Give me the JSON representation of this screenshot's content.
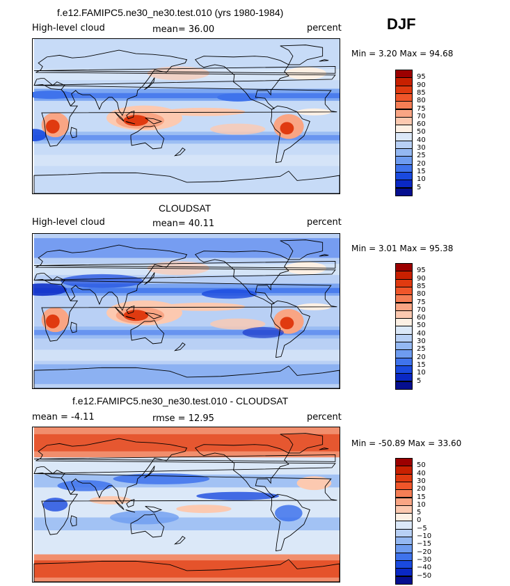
{
  "season": "DJF",
  "panels": [
    {
      "title": "f.e12.FAMIPC5.ne30_ne30.test.010 (yrs 1980-1984)",
      "left_label": "High-level cloud",
      "center_label": "mean=  36.00",
      "right_label": "percent",
      "minmax": "Min =   3.20 Max =  94.68",
      "levels": [
        "95",
        "90",
        "85",
        "80",
        "75",
        "70",
        "60",
        "50",
        "40",
        "30",
        "25",
        "20",
        "15",
        "10",
        "5"
      ],
      "colors": [
        "#9c0000",
        "#c82000",
        "#e03a10",
        "#f0562a",
        "#f57e55",
        "#f9a584",
        "#fcc9b0",
        "#fdf0e4",
        "#dbe8f8",
        "#b8d0f5",
        "#94b8f2",
        "#6e9cf0",
        "#3f73ec",
        "#1a4adf",
        "#0a28c4",
        "#060f8f"
      ]
    },
    {
      "title": "CLOUDSAT",
      "left_label": "High-level cloud",
      "center_label": "mean=  40.11",
      "right_label": "percent",
      "minmax": "Min =   3.01 Max =  95.38",
      "levels": [
        "95",
        "90",
        "85",
        "80",
        "75",
        "70",
        "60",
        "50",
        "40",
        "30",
        "25",
        "20",
        "15",
        "10",
        "5"
      ],
      "colors": [
        "#9c0000",
        "#c82000",
        "#e03a10",
        "#f0562a",
        "#f57e55",
        "#f9a584",
        "#fcc9b0",
        "#fdf0e4",
        "#dbe8f8",
        "#b8d0f5",
        "#94b8f2",
        "#6e9cf0",
        "#3f73ec",
        "#1a4adf",
        "#0a28c4",
        "#060f8f"
      ]
    },
    {
      "title": "f.e12.FAMIPC5.ne30_ne30.test.010 - CLOUDSAT",
      "left_label": "mean =  -4.11",
      "center_label": "rmse =  12.95",
      "right_label": "percent",
      "minmax": "Min = -50.89 Max =  33.60",
      "levels": [
        "50",
        "40",
        "30",
        "20",
        "15",
        "10",
        "5",
        "0",
        "−5",
        "−10",
        "−15",
        "−20",
        "−30",
        "−40",
        "−50"
      ],
      "colors": [
        "#9c0000",
        "#c82000",
        "#e03a10",
        "#f0562a",
        "#f57e55",
        "#f9a584",
        "#fcc9b0",
        "#fdf0e4",
        "#dbe8f8",
        "#b8d0f5",
        "#94b8f2",
        "#6e9cf0",
        "#3f73ec",
        "#1a4adf",
        "#0a28c4",
        "#060f8f"
      ]
    }
  ]
}
